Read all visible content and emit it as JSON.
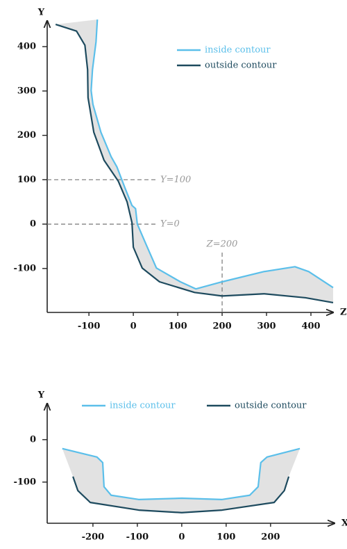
{
  "chart_data": [
    {
      "type": "line",
      "x_label": "Z",
      "y_label": "Y",
      "xlim": [
        -194,
        450
      ],
      "ylim": [
        -199,
        458
      ],
      "xticks": [
        -100,
        0,
        100,
        200,
        300,
        400
      ],
      "yticks": [
        -100,
        0,
        100,
        200,
        300,
        400
      ],
      "legend": "upper right",
      "fill_between": "#e2e2e2",
      "series": [
        {
          "name": "inside contour",
          "color": "#5bbfea",
          "x": [
            -81,
            -84,
            -92,
            -95,
            -91,
            -73,
            -50,
            -37,
            -19,
            -3,
            5,
            9,
            28,
            52,
            106,
            141,
            200,
            294,
            364,
            395,
            450
          ],
          "values": [
            461,
            411,
            348,
            301,
            270,
            207,
            152,
            129,
            82,
            42,
            35,
            0,
            -44,
            -99,
            -130,
            -146,
            -130,
            -107,
            -96,
            -107,
            -143
          ]
        },
        {
          "name": "outside contour",
          "color": "#1d4a5e",
          "x": [
            -175,
            -128,
            -109,
            -103,
            -102,
            -89,
            -66,
            -34,
            -14,
            -3,
            0,
            20,
            59,
            138,
            200,
            294,
            388,
            450
          ],
          "values": [
            450,
            435,
            403,
            348,
            285,
            207,
            144,
            97,
            50,
            3,
            -52,
            -99,
            -130,
            -154,
            -162,
            -157,
            -166,
            -177
          ]
        }
      ],
      "annotations": [
        {
          "text": "Y=100",
          "axis": "y",
          "value": 100
        },
        {
          "text": "Y=0",
          "axis": "y",
          "value": 0
        },
        {
          "text": "Z=200",
          "axis": "x",
          "value": 200
        }
      ]
    },
    {
      "type": "line",
      "x_label": "X",
      "y_label": "Y",
      "xlim": [
        -303,
        344
      ],
      "ylim": [
        -197,
        85
      ],
      "xticks": [
        -200,
        -100,
        0,
        100,
        200
      ],
      "yticks": [
        -100,
        0
      ],
      "legend": "top",
      "fill_between": "#e2e2e2",
      "series": [
        {
          "name": "inside contour",
          "color": "#5bbfea",
          "x": [
            -269,
            -191,
            -178,
            -175,
            -159,
            -97,
            0,
            91,
            153,
            172,
            178,
            192,
            266
          ],
          "values": [
            -21,
            -41,
            -54,
            -111,
            -131,
            -141,
            -138,
            -141,
            -131,
            -111,
            -54,
            -41,
            -21
          ]
        },
        {
          "name": "outside contour",
          "color": "#1d4a5e",
          "x": [
            -245,
            -234,
            -206,
            -97,
            0,
            91,
            208,
            231,
            241
          ],
          "values": [
            -87,
            -120,
            -148,
            -166,
            -172,
            -166,
            -148,
            -120,
            -87
          ]
        }
      ]
    }
  ]
}
